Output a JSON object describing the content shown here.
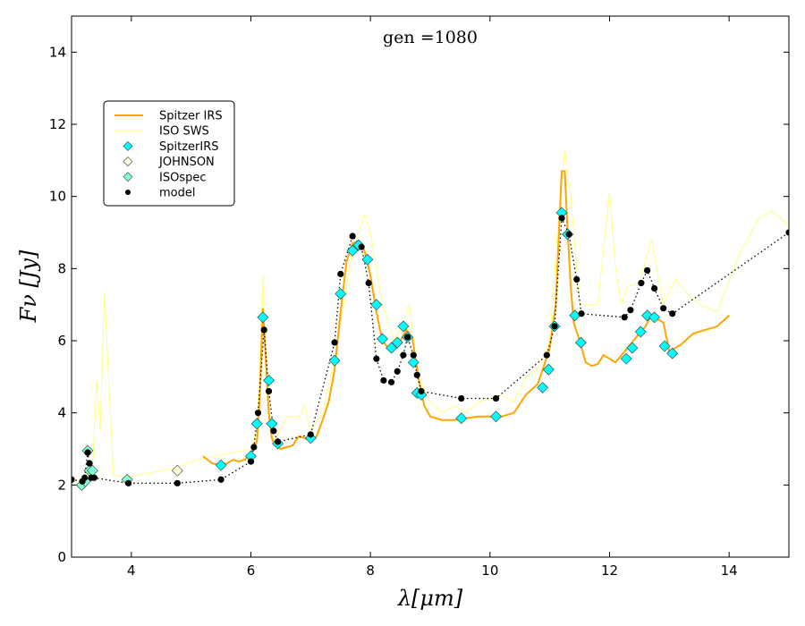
{
  "chart_data": {
    "type": "line",
    "title": "gen =1080",
    "xlabel": "λ[μm]",
    "ylabel": "Fν [Jy]",
    "xlim": [
      3,
      15
    ],
    "ylim": [
      0,
      15
    ],
    "xticks": [
      4,
      6,
      8,
      10,
      12,
      14
    ],
    "yticks": [
      0,
      2,
      4,
      6,
      8,
      10,
      12,
      14
    ],
    "legend_position": "upper-left",
    "colors": {
      "spitzer_irs": "#FFA500",
      "iso_sws": "#FFFF80",
      "marker_cyan": "#00FFFF",
      "marker_johnson": "#FFFFE0",
      "marker_isospec": "#7FFFD4",
      "model": "#000000"
    },
    "series": [
      {
        "name": "Spitzer IRS",
        "kind": "line",
        "x": [
          5.2,
          5.35,
          5.5,
          5.6,
          5.7,
          5.8,
          5.9,
          6.0,
          6.1,
          6.15,
          6.2,
          6.25,
          6.3,
          6.35,
          6.4,
          6.5,
          6.6,
          6.7,
          6.8,
          6.9,
          7.0,
          7.1,
          7.2,
          7.3,
          7.4,
          7.5,
          7.6,
          7.7,
          7.8,
          7.9,
          8.0,
          8.1,
          8.2,
          8.3,
          8.4,
          8.5,
          8.6,
          8.7,
          8.8,
          8.9,
          9.0,
          9.2,
          9.4,
          9.6,
          9.8,
          10.0,
          10.2,
          10.4,
          10.6,
          10.8,
          11.0,
          11.1,
          11.2,
          11.25,
          11.3,
          11.35,
          11.4,
          11.5,
          11.6,
          11.7,
          11.8,
          11.9,
          12.0,
          12.1,
          12.2,
          12.3,
          12.4,
          12.5,
          12.6,
          12.7,
          12.8,
          12.9,
          13.0,
          13.2,
          13.4,
          13.6,
          13.8,
          14.0
        ],
        "y": [
          2.8,
          2.6,
          2.55,
          2.6,
          2.7,
          2.65,
          2.7,
          2.9,
          3.2,
          4.5,
          6.9,
          5.5,
          4.0,
          3.3,
          3.1,
          3.0,
          3.05,
          3.1,
          3.35,
          3.3,
          3.2,
          3.35,
          3.8,
          4.3,
          5.2,
          6.8,
          8.2,
          8.7,
          8.75,
          8.5,
          7.8,
          6.8,
          6.0,
          5.8,
          5.9,
          6.0,
          6.3,
          6.1,
          5.0,
          4.2,
          3.9,
          3.8,
          3.8,
          3.85,
          3.9,
          3.9,
          3.9,
          4.0,
          4.5,
          4.8,
          5.8,
          7.0,
          10.7,
          10.7,
          9.0,
          7.5,
          6.5,
          6.0,
          5.4,
          5.3,
          5.35,
          5.6,
          5.5,
          5.4,
          5.6,
          5.8,
          6.0,
          6.2,
          6.4,
          6.7,
          6.6,
          6.5,
          5.7,
          5.9,
          6.2,
          6.3,
          6.4,
          6.7
        ]
      },
      {
        "name": "ISO SWS",
        "kind": "line",
        "x": [
          3.0,
          3.2,
          3.28,
          3.35,
          3.42,
          3.48,
          3.55,
          3.7,
          3.9,
          4.2,
          4.5,
          4.8,
          5.1,
          5.4,
          5.7,
          6.0,
          6.1,
          6.15,
          6.2,
          6.25,
          6.3,
          6.4,
          6.6,
          6.8,
          6.9,
          7.0,
          7.2,
          7.4,
          7.6,
          7.7,
          7.8,
          7.9,
          8.0,
          8.2,
          8.4,
          8.55,
          8.65,
          8.8,
          9.0,
          9.2,
          9.4,
          9.6,
          9.8,
          10.2,
          10.4,
          10.6,
          10.8,
          11.0,
          11.15,
          11.25,
          11.35,
          11.5,
          11.8,
          12.0,
          12.1,
          12.2,
          12.3,
          12.5,
          12.7,
          12.9,
          13.1,
          13.3,
          13.5,
          13.8,
          14.2,
          14.5,
          14.7,
          15.0
        ],
        "y": [
          2.2,
          2.1,
          2.5,
          2.4,
          4.9,
          3.5,
          7.3,
          2.3,
          2.2,
          2.3,
          2.4,
          2.5,
          2.7,
          2.8,
          2.9,
          3.0,
          3.5,
          5.5,
          7.8,
          5.0,
          3.8,
          3.2,
          3.9,
          3.9,
          4.2,
          3.5,
          4.0,
          5.5,
          7.5,
          8.5,
          9.0,
          9.5,
          9.0,
          7.0,
          6.0,
          6.5,
          7.0,
          5.0,
          4.3,
          4.0,
          4.2,
          4.0,
          4.3,
          4.5,
          4.3,
          5.0,
          5.2,
          6.0,
          9.5,
          11.3,
          10.0,
          7.0,
          7.0,
          10.1,
          8.0,
          7.0,
          7.5,
          7.6,
          8.8,
          7.0,
          7.7,
          7.3,
          7.0,
          6.8,
          8.5,
          9.4,
          9.6,
          9.2
        ]
      },
      {
        "name": "SpitzerIRS",
        "kind": "marker",
        "marker": "diamond",
        "x": [
          5.5,
          6.0,
          6.1,
          6.2,
          6.3,
          6.35,
          6.45,
          7.0,
          7.4,
          7.5,
          7.7,
          7.8,
          7.95,
          8.1,
          8.2,
          8.35,
          8.45,
          8.55,
          8.62,
          8.72,
          8.78,
          8.85,
          9.52,
          10.1,
          10.88,
          10.98,
          11.08,
          11.2,
          11.3,
          11.42,
          11.52,
          12.28,
          12.38,
          12.52,
          12.63,
          12.75,
          12.92,
          13.05
        ],
        "y": [
          2.55,
          2.8,
          3.7,
          6.65,
          4.9,
          3.7,
          3.15,
          3.3,
          5.45,
          7.3,
          8.5,
          8.65,
          8.25,
          7.0,
          6.05,
          5.8,
          5.95,
          6.4,
          6.1,
          5.4,
          4.55,
          4.5,
          3.85,
          3.9,
          4.7,
          5.2,
          6.4,
          9.55,
          8.95,
          6.7,
          5.95,
          5.5,
          5.8,
          6.25,
          6.7,
          6.65,
          5.85,
          5.65
        ]
      },
      {
        "name": "JOHNSON",
        "kind": "marker",
        "marker": "diamond",
        "x": [
          4.77
        ],
        "y": [
          2.4
        ]
      },
      {
        "name": "ISOspec",
        "kind": "marker",
        "marker": "diamond",
        "x": [
          3.17,
          3.23,
          3.27,
          3.3,
          3.35,
          3.93
        ],
        "y": [
          2.0,
          2.1,
          2.95,
          2.4,
          2.4,
          2.15
        ]
      },
      {
        "name": "model",
        "kind": "dotted-marker",
        "marker": "circle",
        "x": [
          3.0,
          3.18,
          3.22,
          3.27,
          3.3,
          3.33,
          3.38,
          3.95,
          4.77,
          5.5,
          6.0,
          6.05,
          6.12,
          6.22,
          6.3,
          6.38,
          6.45,
          7.0,
          7.4,
          7.5,
          7.7,
          7.85,
          7.97,
          8.1,
          8.22,
          8.35,
          8.45,
          8.55,
          8.62,
          8.72,
          8.78,
          8.85,
          9.52,
          10.1,
          10.95,
          11.08,
          11.2,
          11.32,
          11.45,
          11.53,
          12.25,
          12.35,
          12.53,
          12.63,
          12.75,
          12.9,
          13.05,
          15.0
        ],
        "y": [
          2.15,
          2.1,
          2.2,
          2.9,
          2.6,
          2.2,
          2.2,
          2.05,
          2.05,
          2.15,
          2.65,
          3.05,
          4.0,
          6.3,
          4.6,
          3.5,
          3.2,
          3.4,
          5.95,
          7.85,
          8.9,
          8.6,
          7.6,
          5.5,
          4.9,
          4.85,
          5.15,
          5.6,
          6.1,
          5.6,
          5.05,
          4.6,
          4.4,
          4.4,
          5.6,
          6.4,
          9.4,
          8.95,
          7.7,
          6.75,
          6.65,
          6.85,
          7.6,
          7.95,
          7.45,
          6.9,
          6.75,
          9.0
        ]
      }
    ]
  }
}
